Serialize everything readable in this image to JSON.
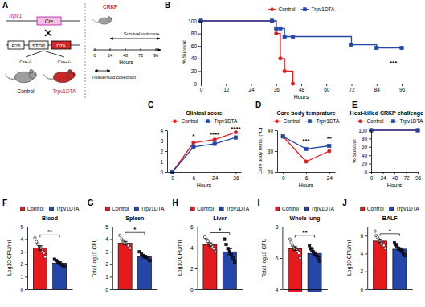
{
  "diagram": {
    "panel": "A",
    "gene1": {
      "label": "Trpv1",
      "insert": "Cre"
    },
    "gene2": {
      "label": "R26",
      "stop": "STOP",
      "insert": "DTA"
    },
    "mice": [
      {
        "genotype": "Cre-/-",
        "label": "Control"
      },
      {
        "genotype": "Cre+/-",
        "label": "Trpv1DTA"
      }
    ],
    "challenge": "CRKP",
    "timeline": {
      "ticks": [
        0,
        24,
        48,
        72,
        96
      ],
      "unit": "Hours",
      "outcome": "Survival outcome",
      "collection": "Tissue/fluid collection"
    }
  },
  "chart_data": [
    {
      "panel": "B",
      "type": "line",
      "line_style": "step",
      "x": [
        0,
        34,
        36,
        38,
        40,
        44,
        72,
        84,
        96
      ],
      "xlim": [
        0,
        96
      ],
      "xticks": [
        0,
        12,
        24,
        36,
        48,
        60,
        72,
        84,
        96
      ],
      "ylim": [
        0,
        100
      ],
      "yticks": [
        0,
        20,
        40,
        60,
        80,
        100
      ],
      "xlabel": "Hours",
      "ylabel": "% Survival",
      "legend": "top",
      "series": [
        {
          "name": "Control",
          "color": "#e41a1c",
          "marker": "circle",
          "values": [
            100,
            100,
            80,
            40,
            20,
            0,
            null,
            null,
            null
          ]
        },
        {
          "name": "Trpv1DTA",
          "color": "#2346a8",
          "marker": "square",
          "values": [
            100,
            100,
            88,
            88,
            75,
            75,
            62,
            57,
            57
          ]
        }
      ],
      "annotations": [
        {
          "text": "***",
          "x": 92,
          "y": 30
        }
      ]
    },
    {
      "panel": "C",
      "type": "line",
      "title": "Clinical score",
      "categories": [
        "0",
        "6",
        "24",
        "36"
      ],
      "ylim": [
        0,
        4
      ],
      "yticks": [
        0,
        1,
        2,
        3,
        4
      ],
      "xlabel": "Hours",
      "legend": "top",
      "series": [
        {
          "name": "Control",
          "color": "#e41a1c",
          "marker": "circle",
          "values": [
            0,
            2.8,
            3.1,
            3.8
          ]
        },
        {
          "name": "Trpv1DTA",
          "color": "#2346a8",
          "marker": "square",
          "values": [
            0,
            2.4,
            2.7,
            3.3
          ]
        }
      ],
      "annotations": [
        {
          "text": "*",
          "x": "6",
          "y": 3.2
        },
        {
          "text": "****",
          "x": "24",
          "y": 3.4
        },
        {
          "text": "****",
          "x": "36",
          "y": 3.95
        }
      ]
    },
    {
      "panel": "D",
      "type": "line",
      "title": "Core body temprature",
      "categories": [
        "0",
        "6",
        "24"
      ],
      "ylim": [
        20,
        40
      ],
      "yticks": [
        20,
        30,
        40
      ],
      "xlabel": "Hours",
      "ylabel": "Core body temp. (°C)",
      "legend": "top",
      "series": [
        {
          "name": "Control",
          "color": "#e41a1c",
          "marker": "circle",
          "values": [
            37,
            25,
            30
          ]
        },
        {
          "name": "Trpv1DTA",
          "color": "#2346a8",
          "marker": "square",
          "values": [
            37,
            31,
            32.5
          ]
        }
      ],
      "annotations": [
        {
          "text": "***",
          "x": "6",
          "y": 34
        },
        {
          "text": "**",
          "x": "24",
          "y": 35
        }
      ]
    },
    {
      "panel": "E",
      "type": "line",
      "line_style": "step",
      "title": "Heat-killed CRKP challenge",
      "x": [
        0,
        96
      ],
      "xlim": [
        0,
        96
      ],
      "xticks": [
        0,
        24,
        48,
        72,
        96
      ],
      "ylim": [
        0,
        100
      ],
      "yticks": [
        0,
        20,
        40,
        60,
        80,
        100
      ],
      "xlabel": "Hours",
      "ylabel": "% Survival",
      "legend": "top",
      "series": [
        {
          "name": "Control",
          "color": "#e41a1c",
          "marker": "circle",
          "values": [
            100,
            100
          ]
        },
        {
          "name": "Trpv1DTA",
          "color": "#2346a8",
          "marker": "square",
          "values": [
            100,
            100
          ]
        }
      ]
    },
    {
      "panel": "F",
      "type": "bar",
      "title": "Blood",
      "categories": [
        null
      ],
      "tick_labels": "y",
      "ylim": [
        0,
        5
      ],
      "yticks": [
        0,
        1,
        2,
        3,
        4,
        5
      ],
      "ylabel": "Log10 CFU/ml",
      "legend": "top",
      "series": [
        {
          "name": "Control",
          "color": "#e41a1c",
          "marker": "circle",
          "values": [
            3.3
          ],
          "error": [
            0.18
          ],
          "points": [
            [
              4.1,
              3.8,
              3.6,
              3.4,
              3.3,
              3.1,
              2.9,
              2.6
            ]
          ]
        },
        {
          "name": "Trpv1DTA",
          "color": "#2346a8",
          "marker": "square",
          "values": [
            2.1
          ],
          "error": [
            0.09
          ],
          "points": [
            [
              2.4,
              2.3,
              2.2,
              2.1,
              2.0,
              1.9,
              1.8
            ]
          ]
        }
      ],
      "annotations": [
        {
          "text": "**",
          "y": 4.4
        }
      ]
    },
    {
      "panel": "G",
      "type": "bar",
      "title": "Spleen",
      "categories": [
        null
      ],
      "tick_labels": "y",
      "ylim": [
        0,
        5
      ],
      "yticks": [
        0,
        1,
        2,
        3,
        4,
        5
      ],
      "ylabel": "Total log10 CFU",
      "legend": "top",
      "series": [
        {
          "name": "Control",
          "color": "#e41a1c",
          "marker": "circle",
          "values": [
            3.7
          ],
          "error": [
            0.13
          ],
          "points": [
            [
              4.3,
              4.0,
              3.8,
              3.7,
              3.6,
              3.5,
              3.3
            ]
          ]
        },
        {
          "name": "Trpv1DTA",
          "color": "#2346a8",
          "marker": "square",
          "values": [
            2.6
          ],
          "error": [
            0.1
          ],
          "points": [
            [
              3.0,
              2.8,
              2.7,
              2.6,
              2.5,
              2.3
            ]
          ]
        }
      ],
      "annotations": [
        {
          "text": "*",
          "y": 4.6
        }
      ]
    },
    {
      "panel": "H",
      "type": "bar",
      "title": "Liver",
      "categories": [
        null
      ],
      "tick_labels": "y",
      "ylim": [
        0,
        6
      ],
      "yticks": [
        0,
        2,
        4,
        6
      ],
      "ylabel": "Log10 CFU/ml",
      "legend": "top",
      "series": [
        {
          "name": "Control",
          "color": "#e41a1c",
          "marker": "circle",
          "values": [
            4.3
          ],
          "error": [
            0.16
          ],
          "points": [
            [
              5.0,
              4.8,
              4.6,
              4.4,
              4.3,
              4.1,
              3.9,
              3.6
            ]
          ]
        },
        {
          "name": "Trpv1DTA",
          "color": "#2346a8",
          "marker": "square",
          "values": [
            3.6
          ],
          "error": [
            0.28
          ],
          "points": [
            [
              4.8,
              4.3,
              3.9,
              3.6,
              3.3,
              3.0,
              2.6
            ]
          ]
        }
      ],
      "annotations": [
        {
          "text": "*",
          "y": 5.5
        }
      ]
    },
    {
      "panel": "I",
      "type": "bar",
      "title": "Whole lung",
      "categories": [
        null
      ],
      "tick_labels": "y",
      "ylim": [
        4,
        8
      ],
      "yticks": [
        4,
        6,
        8
      ],
      "ylabel": "Total log10 CFU",
      "legend": "top",
      "series": [
        {
          "name": "Control",
          "color": "#e41a1c",
          "marker": "circle",
          "values": [
            6.6
          ],
          "error": [
            0.12
          ],
          "points": [
            [
              7.2,
              7.0,
              6.8,
              6.7,
              6.6,
              6.5,
              6.4,
              6.3,
              6.0
            ]
          ]
        },
        {
          "name": "Trpv1DTA",
          "color": "#2346a8",
          "marker": "square",
          "values": [
            6.3
          ],
          "error": [
            0.1
          ],
          "points": [
            [
              6.8,
              6.6,
              6.5,
              6.4,
              6.3,
              6.2,
              6.1,
              6.0,
              5.8
            ]
          ]
        }
      ],
      "annotations": [
        {
          "text": "**",
          "y": 7.5
        }
      ]
    },
    {
      "panel": "J",
      "type": "bar",
      "title": "BALF",
      "categories": [
        null
      ],
      "tick_labels": "y",
      "ylim": [
        0,
        7
      ],
      "yticks": [
        0,
        2,
        4,
        6
      ],
      "ylabel": "Log10 CFU/ml",
      "legend": "top",
      "series": [
        {
          "name": "Control",
          "color": "#e41a1c",
          "marker": "circle",
          "values": [
            5.4
          ],
          "error": [
            0.18
          ],
          "points": [
            [
              6.5,
              6.0,
              5.8,
              5.6,
              5.4,
              5.2,
              5.0,
              4.9,
              4.6
            ]
          ]
        },
        {
          "name": "Trpv1DTA",
          "color": "#2346a8",
          "marker": "square",
          "values": [
            4.5
          ],
          "error": [
            0.14
          ],
          "points": [
            [
              5.2,
              5.0,
              4.8,
              4.6,
              4.5,
              4.4,
              4.2,
              4.0,
              3.8
            ]
          ]
        }
      ],
      "annotations": [
        {
          "text": "*",
          "y": 6.3
        }
      ]
    }
  ]
}
